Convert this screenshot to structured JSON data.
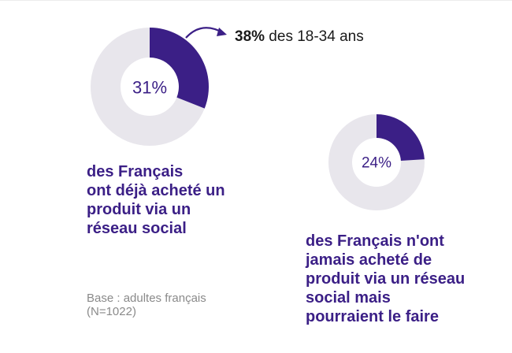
{
  "chart_data": [
    {
      "type": "pie",
      "value": 31,
      "center_label": "31%",
      "caption": [
        "des Français",
        "ont déjà acheté un",
        "produit via un",
        "réseau social"
      ],
      "annotation": {
        "value": "38%",
        "text": " des 18-34 ans"
      }
    },
    {
      "type": "pie",
      "value": 24,
      "center_label": "24%",
      "caption": [
        "des Français n'ont",
        "jamais acheté de",
        "produit via un réseau",
        "social mais",
        "pourraient le faire"
      ]
    }
  ],
  "footnote": [
    "Base : adultes français",
    "(N=1022)"
  ],
  "colors": {
    "accent": "#3b1f86",
    "track": "#e8e6ec",
    "text": "#1a1a1a",
    "muted": "#8a8a8a"
  }
}
